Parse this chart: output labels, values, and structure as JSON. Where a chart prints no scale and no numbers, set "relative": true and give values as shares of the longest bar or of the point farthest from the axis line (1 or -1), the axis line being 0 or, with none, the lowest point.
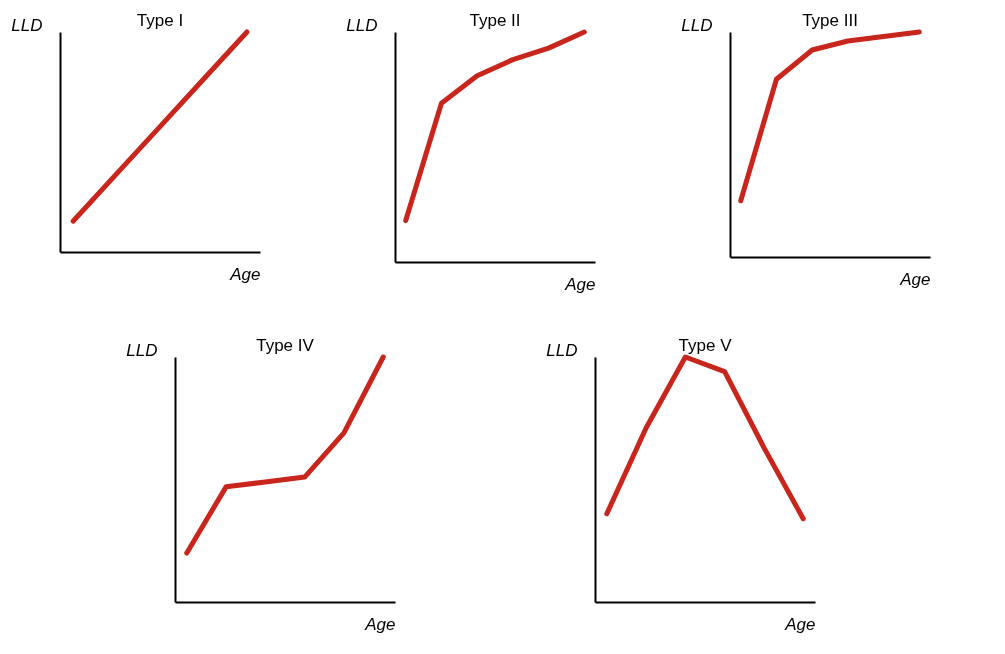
{
  "chart_data": [
    {
      "type": "line",
      "title": "Type I",
      "xlabel": "Age",
      "ylabel": "LLD",
      "relative": true,
      "categories": [
        null,
        null,
        null,
        null,
        null
      ],
      "values": [
        0.14,
        0.355,
        0.57,
        0.785,
        1.0
      ],
      "color": "#c8251c"
    },
    {
      "type": "line",
      "title": "Type II",
      "xlabel": "Age",
      "ylabel": "LLD",
      "relative": true,
      "categories": [
        null,
        null,
        null,
        null,
        null,
        null
      ],
      "values": [
        0.18,
        0.69,
        0.81,
        0.88,
        0.93,
        1.0
      ],
      "color": "#c8251c"
    },
    {
      "type": "line",
      "title": "Type III",
      "xlabel": "Age",
      "ylabel": "LLD",
      "relative": true,
      "categories": [
        null,
        null,
        null,
        null,
        null,
        null
      ],
      "values": [
        0.25,
        0.79,
        0.92,
        0.96,
        0.98,
        1.0
      ],
      "color": "#c8251c"
    },
    {
      "type": "line",
      "title": "Type IV",
      "xlabel": "Age",
      "ylabel": "LLD",
      "relative": true,
      "categories": [
        null,
        null,
        null,
        null,
        null,
        null
      ],
      "values": [
        0.2,
        0.47,
        0.49,
        0.51,
        0.69,
        1.0
      ],
      "color": "#c8251c"
    },
    {
      "type": "line",
      "title": "Type V",
      "xlabel": "Age",
      "ylabel": "LLD",
      "relative": true,
      "categories": [
        null,
        null,
        null,
        null,
        null,
        null
      ],
      "values": [
        0.36,
        0.71,
        1.0,
        0.94,
        0.63,
        0.34
      ],
      "color": "#c8251c"
    }
  ]
}
